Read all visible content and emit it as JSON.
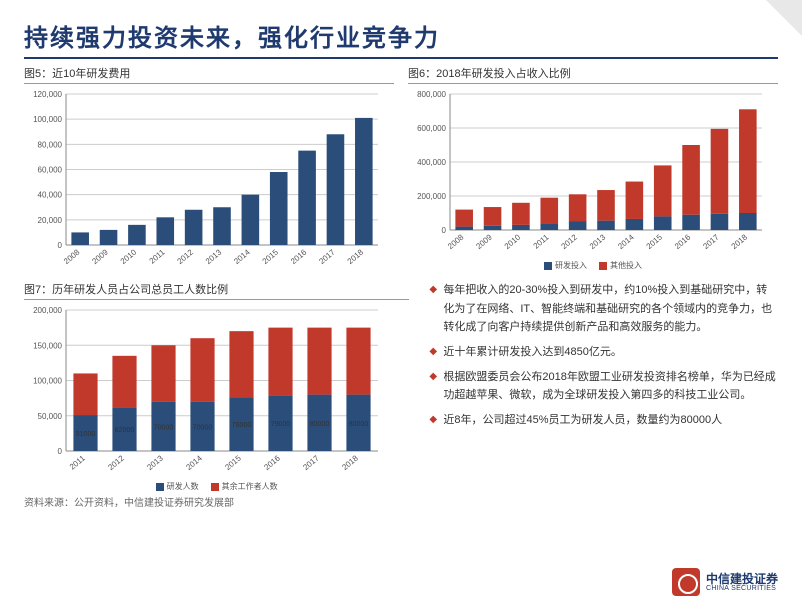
{
  "title": "持续强力投资未来，强化行业竞争力",
  "colors": {
    "primary": "#2a4d7a",
    "secondary": "#c0392b",
    "text": "#333333",
    "grid": "#cccccc",
    "axis": "#888888"
  },
  "chart5": {
    "title": "图5：近10年研发费用",
    "type": "bar",
    "categories": [
      "2008",
      "2009",
      "2010",
      "2011",
      "2012",
      "2013",
      "2014",
      "2015",
      "2016",
      "2017",
      "2018"
    ],
    "values": [
      10000,
      12000,
      16000,
      22000,
      28000,
      30000,
      40000,
      58000,
      75000,
      88000,
      101000
    ],
    "ylim": [
      0,
      120000
    ],
    "ytick_step": 20000,
    "bar_color": "#2a4d7a",
    "grid_color": "#cccccc"
  },
  "chart6": {
    "title": "图6：2018年研发投入占收入比例",
    "type": "stacked-bar",
    "categories": [
      "2008",
      "2009",
      "2010",
      "2011",
      "2012",
      "2013",
      "2014",
      "2015",
      "2016",
      "2017",
      "2018"
    ],
    "series": [
      {
        "name": "研发投入",
        "color": "#2a4d7a",
        "values": [
          20000,
          25000,
          30000,
          40000,
          50000,
          55000,
          65000,
          80000,
          90000,
          95000,
          100000
        ]
      },
      {
        "name": "其他投入",
        "color": "#c0392b",
        "values": [
          100000,
          110000,
          130000,
          150000,
          160000,
          180000,
          220000,
          300000,
          410000,
          500000,
          610000
        ]
      }
    ],
    "ylim": [
      0,
      800000
    ],
    "ytick_step": 200000,
    "grid_color": "#cccccc",
    "legend": [
      "研发投入",
      "其他投入"
    ]
  },
  "chart7": {
    "title": "图7：历年研发人员占公司总员工人数比例",
    "type": "stacked-bar",
    "categories": [
      "2011",
      "2012",
      "2013",
      "2014",
      "2015",
      "2016",
      "2017",
      "2018"
    ],
    "series": [
      {
        "name": "研发人数",
        "color": "#2a4d7a",
        "values": [
          51000,
          62000,
          70000,
          70000,
          76000,
          79000,
          80000,
          80000
        ]
      },
      {
        "name": "其余工作者人数",
        "color": "#c0392b",
        "values": [
          59000,
          73000,
          80000,
          90000,
          94000,
          96000,
          95000,
          95000
        ]
      }
    ],
    "bar_labels": [
      "51000",
      "62000",
      "70000",
      "70000",
      "76000",
      "79000",
      "80000",
      "80000"
    ],
    "ylim": [
      0,
      200000
    ],
    "ytick_step": 50000,
    "grid_color": "#cccccc",
    "legend": [
      "研发人数",
      "其余工作者人数"
    ]
  },
  "bullets": [
    "每年把收入的20-30%投入到研发中，约10%投入到基础研究中，转化为了在网络、IT、智能终端和基础研究的各个领域内的竞争力，也转化成了向客户持续提供创新产品和高效服务的能力。",
    "近十年累计研发投入达到4850亿元。",
    "根据欧盟委员会公布2018年欧盟工业研发投资排名榜单，华为已经成功超越苹果、微软，成为全球研发投入第四多的科技工业公司。",
    "近8年，公司超过45%员工为研发人员，数量约为80000人"
  ],
  "source": "资料来源：公开资料，中信建投证券研究发展部",
  "footer": {
    "cn": "中信建投证券",
    "en": "CHINA SECURITIES"
  }
}
